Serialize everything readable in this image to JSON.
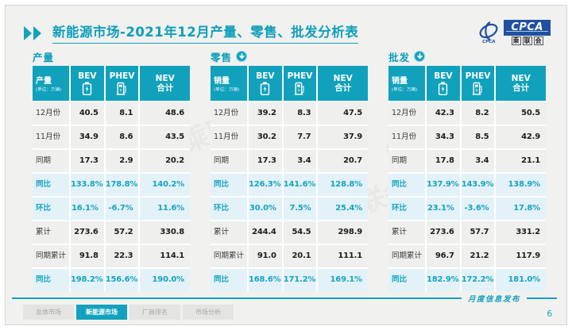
{
  "header": {
    "title": "新能源市场-2021年12月产量、零售、批发分析表",
    "logo": {
      "box_text": "CPCA",
      "swirl_caption": "CPCA",
      "org_chars": [
        "乘",
        "联",
        "会"
      ]
    }
  },
  "columns": {
    "bev": "BEV",
    "phev": "PHEV",
    "nev_line1": "NEV",
    "nev_line2": "合计"
  },
  "panels": [
    {
      "title": "产量",
      "has_arrow": false,
      "measure_label": "产量",
      "unit": "(单位：万辆)",
      "rows": [
        {
          "label": "12月份",
          "values": [
            "40.5",
            "8.1",
            "48.6"
          ],
          "highlight": false
        },
        {
          "label": "11月份",
          "values": [
            "34.9",
            "8.6",
            "43.5"
          ],
          "highlight": false
        },
        {
          "label": "同期",
          "values": [
            "17.3",
            "2.9",
            "20.2"
          ],
          "highlight": false
        },
        {
          "label": "同比",
          "values": [
            "133.8%",
            "178.8%",
            "140.2%"
          ],
          "highlight": true
        },
        {
          "label": "环比",
          "values": [
            "16.1%",
            "-6.7%",
            "11.6%"
          ],
          "highlight": true
        },
        {
          "label": "累计",
          "values": [
            "273.6",
            "57.2",
            "330.8"
          ],
          "highlight": false
        },
        {
          "label": "同期累计",
          "values": [
            "91.8",
            "22.3",
            "114.1"
          ],
          "highlight": false
        },
        {
          "label": "同比",
          "values": [
            "198.2%",
            "156.6%",
            "190.0%"
          ],
          "highlight": true
        }
      ]
    },
    {
      "title": "零售",
      "has_arrow": true,
      "measure_label": "销量",
      "unit": "(单位：万辆)",
      "rows": [
        {
          "label": "12月份",
          "values": [
            "39.2",
            "8.3",
            "47.5"
          ],
          "highlight": false
        },
        {
          "label": "11月份",
          "values": [
            "30.2",
            "7.7",
            "37.9"
          ],
          "highlight": false
        },
        {
          "label": "同期",
          "values": [
            "17.3",
            "3.4",
            "20.7"
          ],
          "highlight": false
        },
        {
          "label": "同比",
          "values": [
            "126.3%",
            "141.6%",
            "128.8%"
          ],
          "highlight": true
        },
        {
          "label": "环比",
          "values": [
            "30.0%",
            "7.5%",
            "25.4%"
          ],
          "highlight": true
        },
        {
          "label": "累计",
          "values": [
            "244.4",
            "54.5",
            "298.9"
          ],
          "highlight": false
        },
        {
          "label": "同期累计",
          "values": [
            "91.0",
            "20.1",
            "111.1"
          ],
          "highlight": false
        },
        {
          "label": "同比",
          "values": [
            "168.6%",
            "171.2%",
            "169.1%"
          ],
          "highlight": true
        }
      ]
    },
    {
      "title": "批发",
      "has_arrow": true,
      "measure_label": "销量",
      "unit": "(单位：万辆)",
      "rows": [
        {
          "label": "12月份",
          "values": [
            "42.3",
            "8.2",
            "50.5"
          ],
          "highlight": false
        },
        {
          "label": "11月份",
          "values": [
            "34.3",
            "8.5",
            "42.9"
          ],
          "highlight": false
        },
        {
          "label": "同期",
          "values": [
            "17.8",
            "3.4",
            "21.1"
          ],
          "highlight": false
        },
        {
          "label": "同比",
          "values": [
            "137.9%",
            "143.9%",
            "138.9%"
          ],
          "highlight": true
        },
        {
          "label": "环比",
          "values": [
            "23.1%",
            "-3.6%",
            "17.8%"
          ],
          "highlight": true
        },
        {
          "label": "累计",
          "values": [
            "273.6",
            "57.7",
            "331.2"
          ],
          "highlight": false
        },
        {
          "label": "同期累计",
          "values": [
            "96.7",
            "21.2",
            "117.9"
          ],
          "highlight": false
        },
        {
          "label": "同比",
          "values": [
            "182.9%",
            "172.2%",
            "181.0%"
          ],
          "highlight": true
        }
      ]
    }
  ],
  "footer": {
    "ribbon_label": "月度信息发布",
    "page_number": "6",
    "tabs": [
      {
        "label": "总体市场",
        "active": false
      },
      {
        "label": "新能源市场",
        "active": true
      },
      {
        "label": "厂商排名",
        "active": false
      },
      {
        "label": "市场分析",
        "active": false
      }
    ]
  },
  "watermark": "CPCA 乘联会",
  "colors": {
    "teal": "#12a2be",
    "highlight_bg": "#e3f2f9",
    "logo_blue": "#1f51a0"
  }
}
